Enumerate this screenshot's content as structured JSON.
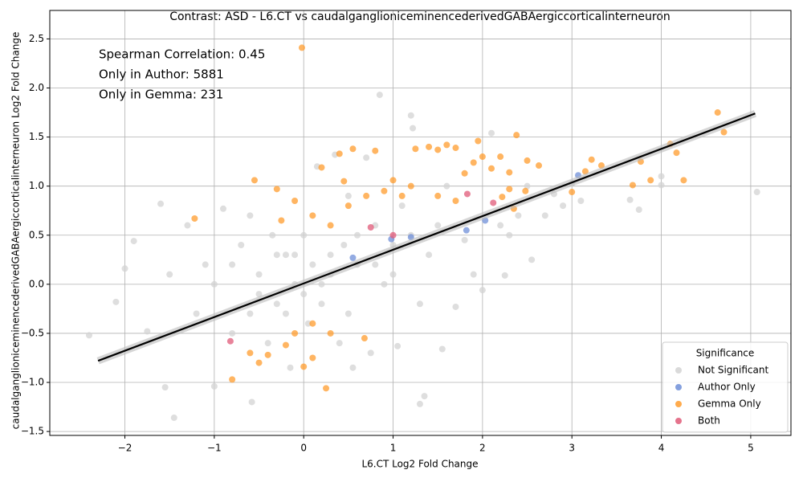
{
  "chart_data": {
    "type": "scatter",
    "title": "Contrast: ASD - L6.CT vs caudalganglioniceminencederivedGABAergiccorticalinterneuron",
    "x_label": "L6.CT Log2 Fold Change",
    "y_label": "caudalganglioniceminencederivedGABAergiccorticalinterneuron Log2 Fold Change",
    "annotations": [
      "Spearman Correlation: 0.45",
      "Only in Author: 5881",
      "Only in Gemma: 231"
    ],
    "legend_title": "Significance",
    "legend": "lower right",
    "grid": true,
    "xlim": [
      -2.84,
      5.45
    ],
    "ylim": [
      -1.54,
      2.79
    ],
    "xticks": [
      {
        "value": -2,
        "label": "−2"
      },
      {
        "value": -1,
        "label": "−1"
      },
      0,
      1,
      2,
      3,
      4,
      5
    ],
    "yticks": [
      {
        "value": -1.5,
        "label": "−1.5"
      },
      {
        "value": -1.0,
        "label": "−1.0"
      },
      {
        "value": -0.5,
        "label": "−0.5"
      },
      {
        "value": 0.0,
        "label": "0.0"
      },
      0.5,
      {
        "value": 1.0,
        "label": "1.0"
      },
      1.5,
      {
        "value": 2.0,
        "label": "2.0"
      },
      2.5
    ],
    "fit_line": {
      "color": "#000000",
      "x": [
        -2.3,
        5.05
      ],
      "y": [
        -0.78,
        1.74
      ]
    },
    "series": [
      {
        "name": "Not Significant",
        "color": "#d3d3d3",
        "x": [
          -2.4,
          -2.1,
          -2.0,
          -1.9,
          -1.75,
          -1.6,
          -1.55,
          -1.45,
          -1.5,
          -1.3,
          -1.2,
          -1.0,
          -1.1,
          -0.9,
          -0.8,
          -0.7,
          -0.6,
          -0.6,
          -0.58,
          -0.5,
          -0.4,
          -0.35,
          -0.3,
          -0.2,
          -0.15,
          -0.1,
          0.0,
          0.05,
          0.1,
          0.15,
          0.2,
          0.3,
          0.35,
          0.4,
          0.45,
          0.5,
          0.55,
          0.6,
          0.7,
          0.75,
          0.8,
          0.85,
          0.9,
          1.0,
          1.05,
          1.1,
          1.2,
          1.22,
          1.3,
          1.35,
          1.3,
          1.4,
          1.5,
          1.55,
          1.6,
          1.7,
          1.8,
          1.9,
          2.0,
          2.1,
          2.2,
          2.25,
          2.3,
          2.4,
          2.5,
          2.55,
          2.7,
          2.8,
          2.9,
          3.0,
          3.1,
          3.65,
          3.75,
          4.0,
          4.0,
          5.07,
          -0.3,
          0.2,
          -0.5,
          0.6,
          0.0,
          0.3,
          -0.2,
          0.8,
          1.0,
          -0.8,
          -1.0,
          0.5,
          1.2,
          -0.1
        ],
        "y": [
          -0.52,
          -0.18,
          0.16,
          0.44,
          -0.48,
          0.82,
          -1.05,
          -1.36,
          0.1,
          0.6,
          -0.3,
          -1.04,
          0.2,
          0.77,
          -0.5,
          0.4,
          -0.3,
          0.7,
          -1.2,
          0.1,
          -0.6,
          0.5,
          -0.2,
          0.3,
          -0.85,
          0.0,
          0.5,
          -0.4,
          0.2,
          1.2,
          -0.2,
          0.1,
          1.32,
          -0.6,
          0.4,
          0.9,
          -0.85,
          0.2,
          1.29,
          -0.7,
          0.6,
          1.93,
          0.0,
          0.4,
          -0.63,
          0.8,
          1.72,
          1.59,
          -0.2,
          -1.14,
          -1.22,
          0.3,
          0.6,
          -0.66,
          1.0,
          -0.23,
          0.45,
          0.1,
          -0.06,
          1.54,
          0.6,
          0.09,
          0.5,
          0.7,
          1.0,
          0.25,
          0.7,
          0.92,
          0.8,
          1.03,
          0.85,
          0.86,
          0.76,
          1.01,
          1.1,
          0.94,
          0.3,
          0.0,
          -0.1,
          0.5,
          -0.1,
          0.3,
          -0.3,
          0.2,
          0.1,
          0.2,
          0.0,
          -0.3,
          0.5,
          0.3
        ]
      },
      {
        "name": "Author Only",
        "color": "#6f8fd8",
        "x": [
          3.07,
          1.82,
          2.03,
          1.2,
          0.98,
          0.55
        ],
        "y": [
          1.11,
          0.55,
          0.65,
          0.48,
          0.46,
          0.27
        ]
      },
      {
        "name": "Gemma Only",
        "color": "#ff9c2e",
        "x": [
          -0.02,
          -1.22,
          -0.8,
          0.25,
          -0.55,
          -0.3,
          0.2,
          0.4,
          0.55,
          0.8,
          1.0,
          1.1,
          1.25,
          1.4,
          1.5,
          1.6,
          1.7,
          1.8,
          1.9,
          1.95,
          2.0,
          2.1,
          2.2,
          2.3,
          2.38,
          2.5,
          2.63,
          2.3,
          2.48,
          2.35,
          2.22,
          3.0,
          3.15,
          3.22,
          3.33,
          3.68,
          3.77,
          3.88,
          4.1,
          4.17,
          4.25,
          4.63,
          4.7,
          0.1,
          0.3,
          0.5,
          0.7,
          0.9,
          1.2,
          1.5,
          1.7,
          -0.5,
          -0.4,
          -0.2,
          0.0,
          0.1,
          -0.1,
          0.3,
          0.68,
          -0.6,
          0.1,
          -0.25,
          -0.1,
          0.45
        ],
        "y": [
          2.41,
          0.67,
          -0.97,
          -1.06,
          1.06,
          0.97,
          1.19,
          1.33,
          1.38,
          1.36,
          1.06,
          0.9,
          1.38,
          1.4,
          1.37,
          1.42,
          1.39,
          1.13,
          1.24,
          1.46,
          1.3,
          1.18,
          1.3,
          1.14,
          1.52,
          1.26,
          1.21,
          0.97,
          0.95,
          0.77,
          0.89,
          0.94,
          1.15,
          1.27,
          1.21,
          1.01,
          1.25,
          1.06,
          1.43,
          1.34,
          1.06,
          1.75,
          1.55,
          0.7,
          0.6,
          0.8,
          0.9,
          0.95,
          1.0,
          0.9,
          0.85,
          -0.8,
          -0.72,
          -0.62,
          -0.84,
          -0.75,
          -0.5,
          -0.5,
          -0.55,
          -0.7,
          -0.4,
          0.65,
          0.85,
          1.05
        ]
      },
      {
        "name": "Both",
        "color": "#e05a78",
        "x": [
          -0.82,
          1.83,
          2.12,
          0.75,
          1.0
        ],
        "y": [
          -0.58,
          0.92,
          0.83,
          0.58,
          0.5
        ]
      }
    ]
  }
}
